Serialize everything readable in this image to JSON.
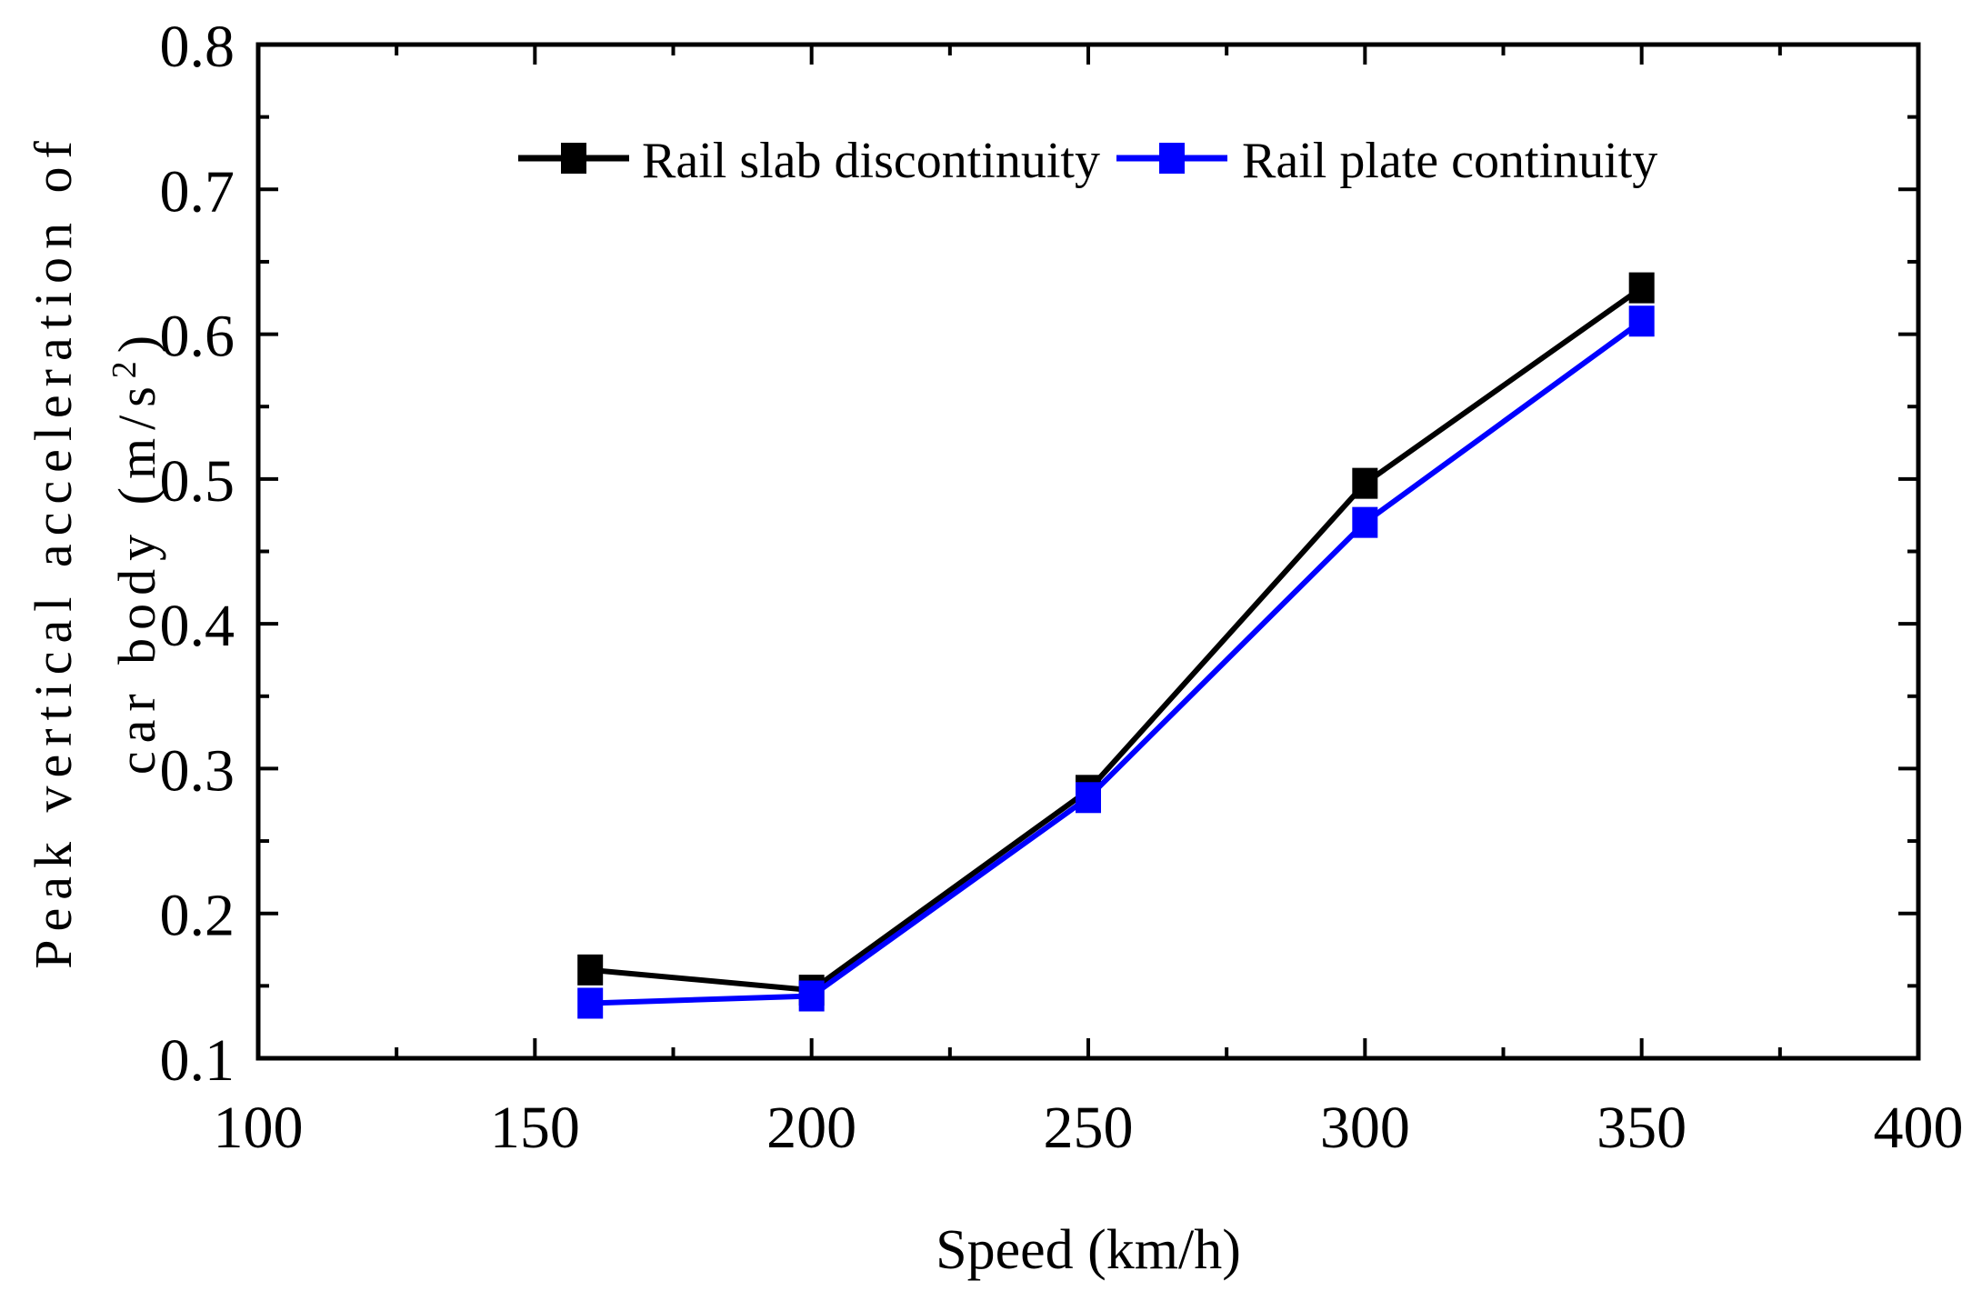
{
  "chart_data": {
    "type": "line",
    "title": "",
    "xlabel": "Speed (km/h)",
    "ylabel_line1": "Peak vertical acceleration of",
    "ylabel_line2_prefix": "car body (m/s",
    "ylabel_line2_sup": "2",
    "ylabel_line2_suffix": ")",
    "xlim": [
      100,
      400
    ],
    "ylim": [
      0.1,
      0.8
    ],
    "xticks": [
      "100",
      "150",
      "200",
      "250",
      "300",
      "350",
      "400"
    ],
    "yticks": [
      "0.1",
      "0.2",
      "0.3",
      "0.4",
      "0.5",
      "0.6",
      "0.7",
      "0.8"
    ],
    "grid": false,
    "legend_position": "top-center",
    "series": [
      {
        "name": "Rail slab discontinuity",
        "color": "#000000",
        "marker": "square",
        "x": [
          160,
          200,
          250,
          300,
          350
        ],
        "y": [
          0.161,
          0.147,
          0.285,
          0.497,
          0.632
        ]
      },
      {
        "name": "Rail plate continuity",
        "color": "#0000ff",
        "marker": "square",
        "x": [
          160,
          200,
          250,
          300,
          350
        ],
        "y": [
          0.138,
          0.143,
          0.28,
          0.47,
          0.609
        ]
      }
    ]
  }
}
